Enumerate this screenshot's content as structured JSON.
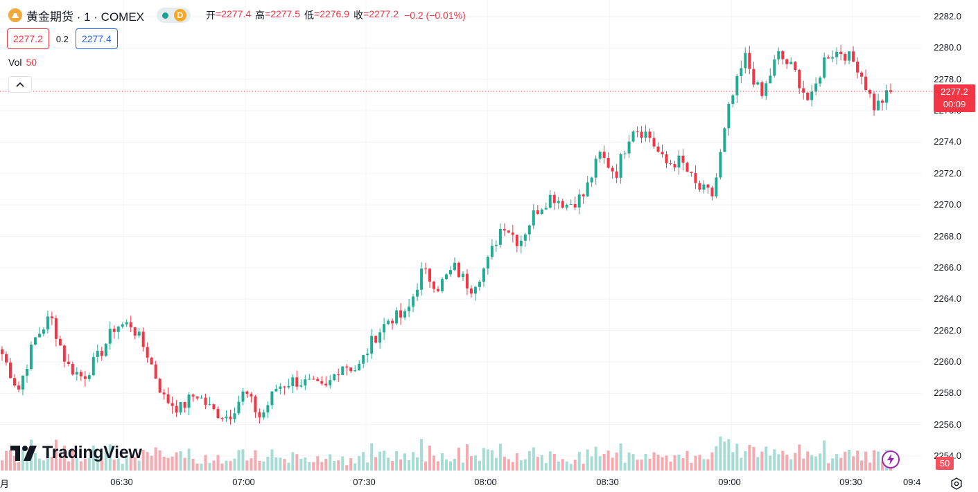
{
  "header": {
    "symbol_title": "黄金期货 · 1 · COMEX",
    "delay_badge": "D",
    "open_label": "开",
    "open_value": "=2277.4",
    "high_label": "高",
    "high_value": "=2277.5",
    "low_label": "低",
    "low_value": "=2276.9",
    "close_label": "收",
    "close_value": "=2277.2",
    "change": "−0.2 (−0.01%)"
  },
  "quote": {
    "bid": "2277.2",
    "spread": "0.2",
    "ask": "2277.4"
  },
  "volume_legend": {
    "label": "Vol",
    "value": "50"
  },
  "logo_text": "TradingView",
  "last_price_tag": {
    "price": "2277.2",
    "countdown": "00:09"
  },
  "volume_tag": "50",
  "price_axis": [
    "2282.0",
    "2280.0",
    "2278.0",
    "2276.0",
    "2274.0",
    "2272.0",
    "2270.0",
    "2268.0",
    "2266.0",
    "2264.0",
    "2262.0",
    "2260.0",
    "2258.0",
    "2256.0",
    "2254.0"
  ],
  "time_axis": [
    "月",
    "06:30",
    "07:00",
    "07:30",
    "08:00",
    "08:30",
    "09:00",
    "09:30",
    "09:4"
  ],
  "colors": {
    "up": "#22ab94",
    "down": "#f23645",
    "up_volume": "#a6dcd3",
    "down_volume": "#f7a9af",
    "grid": "#f0f3fa",
    "last_price_line": "#f23645"
  },
  "chart_data": {
    "type": "candlestick",
    "interval": "1 minute",
    "last_price": 2277.2,
    "ylim": [
      2253.2,
      2282.6
    ],
    "anchors": [
      [
        2260.5,
        0
      ],
      [
        2258.2,
        0
      ],
      [
        2261.4,
        0
      ],
      [
        2262.9,
        0
      ],
      [
        2259.8,
        0
      ],
      [
        2259.0,
        0
      ],
      [
        2260.4,
        0
      ],
      [
        2262.3,
        0
      ],
      [
        2262.4,
        0
      ],
      [
        2260.5,
        0
      ],
      [
        2257.7,
        0
      ],
      [
        2257.0,
        0
      ],
      [
        2258.0,
        0
      ],
      [
        2256.9,
        0
      ],
      [
        2256.5,
        0
      ],
      [
        2258.1,
        0
      ],
      [
        2256.4,
        0
      ],
      [
        2258.4,
        0
      ],
      [
        2258.8,
        0
      ],
      [
        2258.6,
        0
      ],
      [
        2258.2,
        0
      ],
      [
        2259.9,
        0
      ],
      [
        2259.5,
        0
      ],
      [
        2261.5,
        0
      ],
      [
        2262.8,
        0
      ],
      [
        2262.9,
        0
      ],
      [
        2265.8,
        0
      ],
      [
        2264.8,
        0
      ],
      [
        2266.0,
        0
      ],
      [
        2264.7,
        0
      ],
      [
        2266.2,
        0
      ],
      [
        2268.9,
        0
      ],
      [
        2267.6,
        0
      ],
      [
        2269.6,
        0
      ],
      [
        2270.6,
        0
      ],
      [
        2270.0,
        0
      ],
      [
        2270.6,
        0
      ],
      [
        2273.2,
        0
      ],
      [
        2272.0,
        0
      ],
      [
        2275.0,
        0
      ],
      [
        2274.5,
        0
      ],
      [
        2272.6,
        0
      ],
      [
        2272.8,
        0
      ],
      [
        2271.1,
        0
      ],
      [
        2270.6,
        0
      ],
      [
        2276.2,
        0
      ],
      [
        2279.4,
        0
      ],
      [
        2276.8,
        0
      ],
      [
        2279.6,
        0
      ],
      [
        2278.6,
        0
      ],
      [
        2276.4,
        0
      ],
      [
        2279.6,
        0
      ],
      [
        2279.8,
        0
      ],
      [
        2278.8,
        0
      ],
      [
        2276.2,
        0
      ],
      [
        2277.2,
        0
      ]
    ]
  }
}
